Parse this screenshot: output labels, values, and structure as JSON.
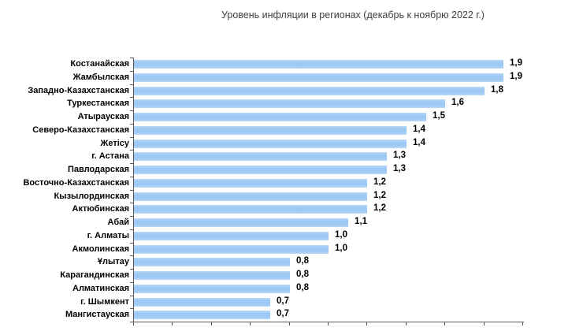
{
  "chart_data": {
    "type": "bar",
    "orientation": "horizontal",
    "title": "Уровень инфляции в регионах (декабрь к ноябрю 2022 г.)",
    "categories": [
      "Костанайская",
      "Жамбылская",
      "Западно-Казахстанская",
      "Туркестанская",
      "Атырауская",
      "Северо-Казахстанская",
      "Жетісу",
      "г. Астана",
      "Павлодарская",
      "Восточно-Казахстанская",
      "Кызылординская",
      "Актюбинская",
      "Абай",
      "г. Алматы",
      "Акмолинская",
      "Ұлытау",
      "Карагандинская",
      "Алматинская",
      "г. Шымкент",
      "Мангистауская"
    ],
    "values": [
      1.9,
      1.9,
      1.8,
      1.6,
      1.5,
      1.4,
      1.4,
      1.3,
      1.3,
      1.2,
      1.2,
      1.2,
      1.1,
      1.0,
      1.0,
      0.8,
      0.8,
      0.8,
      0.7,
      0.7
    ],
    "value_labels": [
      "1,9",
      "1,9",
      "1,8",
      "1,6",
      "1,5",
      "1,4",
      "1,4",
      "1,3",
      "1,3",
      "1,2",
      "1,2",
      "1,2",
      "1,1",
      "1,0",
      "1,0",
      "0,8",
      "0,8",
      "0,8",
      "0,7",
      "0,7"
    ],
    "xlabel": "",
    "ylabel": "",
    "xlim": [
      0,
      2.0
    ],
    "x_tick_step": 0.2,
    "x_tick_labels_visible": false,
    "grid": false,
    "legend": false,
    "colors": {
      "bar_fill": "#9DC9F4",
      "bar_edge": "#BBD9F9",
      "axis": "#595959",
      "labels": "#000000",
      "title": "#404040"
    }
  }
}
